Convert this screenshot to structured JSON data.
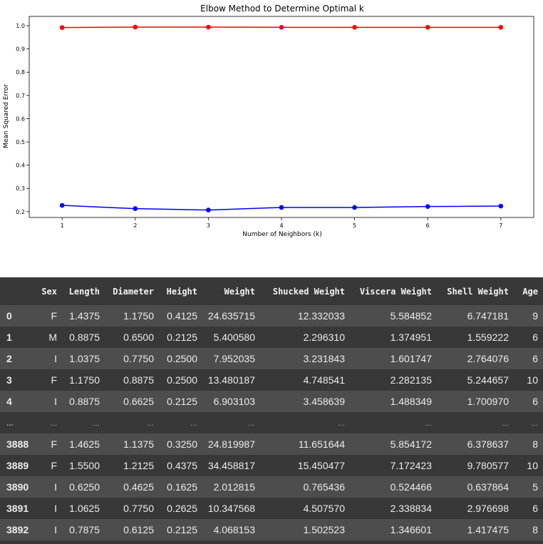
{
  "chart_data": {
    "type": "line",
    "title": "Elbow Method to Determine Optimal k",
    "xlabel": "Number of Neighbors (k)",
    "ylabel": "Mean Squared Error",
    "x": [
      1,
      2,
      3,
      4,
      5,
      6,
      7
    ],
    "xticks": [
      "1",
      "2",
      "3",
      "4",
      "5",
      "6",
      "7"
    ],
    "yticks": [
      "0.2",
      "0.3",
      "0.4",
      "0.5",
      "0.6",
      "0.7",
      "0.8",
      "0.9",
      "1.0"
    ],
    "ylim": [
      0.175,
      1.04
    ],
    "xlim": [
      0.55,
      7.45
    ],
    "grid": false,
    "series": [
      {
        "values": [
          0.992,
          0.994,
          0.994,
          0.993,
          0.993,
          0.993,
          0.993
        ],
        "color": "#ff0000",
        "marker": "circle"
      },
      {
        "values": [
          0.227,
          0.213,
          0.207,
          0.218,
          0.218,
          0.222,
          0.224
        ],
        "color": "#0000ff",
        "marker": "circle"
      }
    ]
  },
  "table": {
    "columns": [
      "",
      "Sex",
      "Length",
      "Diameter",
      "Height",
      "Weight",
      "Shucked Weight",
      "Viscera Weight",
      "Shell Weight",
      "Age"
    ],
    "rows": [
      [
        "0",
        "F",
        "1.4375",
        "1.1750",
        "0.4125",
        "24.635715",
        "12.332033",
        "5.584852",
        "6.747181",
        "9"
      ],
      [
        "1",
        "M",
        "0.8875",
        "0.6500",
        "0.2125",
        "5.400580",
        "2.296310",
        "1.374951",
        "1.559222",
        "6"
      ],
      [
        "2",
        "I",
        "1.0375",
        "0.7750",
        "0.2500",
        "7.952035",
        "3.231843",
        "1.601747",
        "2.764076",
        "6"
      ],
      [
        "3",
        "F",
        "1.1750",
        "0.8875",
        "0.2500",
        "13.480187",
        "4.748541",
        "2.282135",
        "5.244657",
        "10"
      ],
      [
        "4",
        "I",
        "0.8875",
        "0.6625",
        "0.2125",
        "6.903103",
        "3.458639",
        "1.488349",
        "1.700970",
        "6"
      ],
      [
        "...",
        "...",
        "...",
        "...",
        "...",
        "...",
        "...",
        "...",
        "...",
        "..."
      ],
      [
        "3888",
        "F",
        "1.4625",
        "1.1375",
        "0.3250",
        "24.819987",
        "11.651644",
        "5.854172",
        "6.378637",
        "8"
      ],
      [
        "3889",
        "F",
        "1.5500",
        "1.2125",
        "0.4375",
        "34.458817",
        "15.450477",
        "7.172423",
        "9.780577",
        "10"
      ],
      [
        "3890",
        "I",
        "0.6250",
        "0.4625",
        "0.1625",
        "2.012815",
        "0.765436",
        "0.524466",
        "0.637864",
        "5"
      ],
      [
        "3891",
        "I",
        "1.0625",
        "0.7750",
        "0.2625",
        "10.347568",
        "4.507570",
        "2.338834",
        "2.976698",
        "6"
      ],
      [
        "3892",
        "I",
        "0.7875",
        "0.6125",
        "0.2125",
        "4.068153",
        "1.502523",
        "1.346601",
        "1.417475",
        "8"
      ]
    ]
  }
}
